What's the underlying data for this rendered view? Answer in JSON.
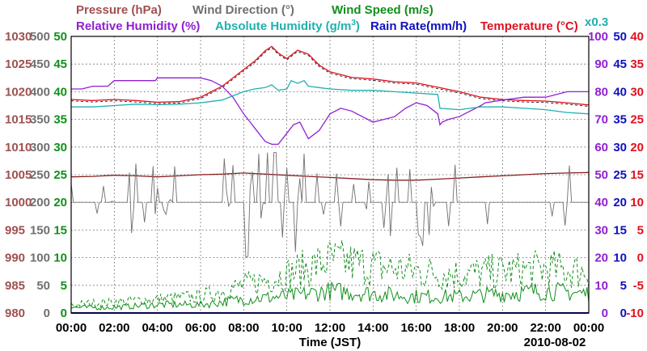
{
  "chart_data": {
    "type": "line",
    "date": "2010-08-02",
    "xlabel": "Time (JST)",
    "x_range": [
      0,
      24
    ],
    "x_tick_labels": [
      "00:00",
      "02:00",
      "04:00",
      "06:00",
      "08:00",
      "10:00",
      "12:00",
      "14:00",
      "16:00",
      "18:00",
      "20:00",
      "22:00",
      "00:00"
    ],
    "grid": true,
    "abs_humidity_scale_note": "x0.3",
    "legend_row1": {
      "pressure": "Pressure (hPa)",
      "wind_direction": "Wind Direction (°)",
      "wind_speed": "Wind Speed (m/s)"
    },
    "legend_row2": {
      "relative_humidity": "Relative Humidity (%)",
      "absolute_humidity_prefix": "Absolute Humidity (g/m",
      "absolute_humidity_sup": "3",
      "absolute_humidity_suffix": ")",
      "rain_rate": "Rain Rate(mm/h)",
      "temperature": "Temperature (°C)"
    },
    "axes": {
      "pressure": {
        "color": "#a05050",
        "min": 980,
        "max": 1030,
        "ticks": [
          "1030",
          "1025",
          "1020",
          "1015",
          "1010",
          "1005",
          "1000",
          "995",
          "990",
          "985",
          "980"
        ]
      },
      "wind_direction": {
        "color": "#707070",
        "min": 0,
        "max": 500,
        "ticks": [
          "500",
          "450",
          "400",
          "350",
          "300",
          "250",
          "200",
          "150",
          "100",
          "50",
          "0"
        ]
      },
      "wind_speed": {
        "color": "#10901a",
        "min": 0,
        "max": 50,
        "ticks": [
          "50",
          "45",
          "40",
          "35",
          "30",
          "25",
          "20",
          "15",
          "10",
          "5",
          "0"
        ]
      },
      "relative_humidity": {
        "color": "#9020d0",
        "min": 0,
        "max": 100,
        "ticks": [
          "100",
          "90",
          "80",
          "70",
          "60",
          "50",
          "40",
          "30",
          "20",
          "10",
          "0"
        ]
      },
      "rain_rate": {
        "color": "#1010c0",
        "min": 0,
        "max": 50,
        "ticks": [
          "50",
          "45",
          "40",
          "35",
          "30",
          "25",
          "20",
          "15",
          "10",
          "5",
          "0"
        ]
      },
      "temperature": {
        "color": "#e01020",
        "min": -10,
        "max": 40,
        "ticks": [
          "40",
          "35",
          "30",
          "25",
          "20",
          "15",
          "10",
          "5",
          "0",
          "-5",
          "-10"
        ]
      }
    },
    "series": [
      {
        "name": "Temperature",
        "axis": "temperature",
        "color": "#e01020",
        "dashed_companion": true,
        "x": [
          0,
          1,
          2,
          3,
          4,
          5,
          6,
          7,
          8,
          8.5,
          9,
          9.3,
          9.6,
          10,
          10.5,
          11,
          11.5,
          12,
          13,
          14,
          15,
          16,
          17,
          18,
          19,
          20,
          21,
          22,
          23,
          24
        ],
        "y": [
          28.6,
          28.4,
          28.6,
          28.4,
          28.1,
          28.2,
          29,
          31,
          34,
          35.5,
          37.4,
          38.2,
          37,
          36,
          37.5,
          36.8,
          34.8,
          33.6,
          32.6,
          32.3,
          31.8,
          31.6,
          30.8,
          30,
          29,
          28.6,
          28.4,
          28.3,
          28,
          27.6
        ]
      },
      {
        "name": "Relative Humidity",
        "axis": "relative_humidity",
        "color": "#9020d0",
        "x": [
          0,
          0.5,
          1,
          1.7,
          2,
          3,
          3.9,
          4,
          5,
          6,
          6.5,
          7,
          7.5,
          8,
          8.3,
          8.6,
          9,
          9.3,
          9.6,
          10,
          10.3,
          10.6,
          11,
          11.5,
          12,
          12.5,
          13,
          13.5,
          14,
          14.5,
          15,
          15.5,
          16,
          16.5,
          17,
          17.1,
          17.2,
          17.5,
          18,
          18.5,
          19,
          19.2,
          20,
          21,
          22,
          23,
          24
        ],
        "y": [
          81,
          81,
          82,
          82,
          84,
          84,
          84,
          85,
          85,
          85,
          84,
          82,
          78,
          72,
          69,
          66,
          62,
          61,
          61,
          65,
          68,
          69,
          63,
          66,
          72,
          74,
          73,
          71,
          69,
          70,
          71,
          74,
          76,
          75,
          72,
          68,
          69,
          70,
          71,
          73,
          75,
          76,
          77,
          78,
          78,
          80,
          80
        ]
      },
      {
        "name": "Absolute Humidity",
        "axis": "relative_humidity",
        "color": "#20b0b0",
        "x": [
          0,
          1,
          2,
          3,
          4,
          5,
          6,
          7,
          7.5,
          8,
          8.5,
          9,
          9.3,
          9.6,
          10,
          10.2,
          10.5,
          10.8,
          11,
          11.5,
          12,
          13,
          14,
          15,
          16,
          17,
          17.1,
          18,
          18.5,
          19,
          20,
          21,
          22,
          23,
          24
        ],
        "y": [
          74.5,
          74.5,
          75,
          75.5,
          75.3,
          75.5,
          76,
          77,
          78.5,
          80,
          81,
          81.5,
          82.5,
          80.5,
          81,
          84,
          83,
          84,
          82,
          81.5,
          81,
          80.5,
          80.5,
          80,
          79.5,
          79,
          74,
          73.5,
          74,
          74.5,
          74.5,
          74,
          73.5,
          72.5,
          72
        ]
      },
      {
        "name": "Pressure",
        "axis": "pressure",
        "color": "#8a2020",
        "x": [
          0,
          1,
          2,
          3,
          4,
          5,
          6,
          7,
          8,
          9,
          10,
          11,
          12,
          13,
          14,
          15,
          16,
          17,
          18,
          19,
          20,
          21,
          22,
          23,
          24
        ],
        "y": [
          1004.6,
          1004.7,
          1004.9,
          1004.8,
          1004.6,
          1004.8,
          1005,
          1005.1,
          1005.3,
          1005.1,
          1004.9,
          1004.7,
          1004.5,
          1004.3,
          1004.1,
          1004.0,
          1004.0,
          1004.2,
          1004.4,
          1004.6,
          1004.8,
          1005.0,
          1005.2,
          1005.3,
          1005.4
        ]
      },
      {
        "name": "Wind Direction",
        "axis": "wind_direction",
        "color": "#707070",
        "style": "spiky_gray",
        "baseline": 200
      },
      {
        "name": "Wind Speed (max)",
        "axis": "wind_speed",
        "color": "#10901a",
        "style": "dashed_noisy",
        "x": [
          0,
          2,
          4,
          6,
          8,
          10,
          12,
          14,
          16,
          18,
          20,
          22,
          24
        ],
        "y": [
          1.5,
          2,
          2.5,
          3,
          5,
          7,
          9.5,
          8.5,
          7.5,
          7,
          7.5,
          8,
          7.5
        ]
      },
      {
        "name": "Wind Speed (avg)",
        "axis": "wind_speed",
        "color": "#10901a",
        "style": "solid_noisy",
        "x": [
          0,
          2,
          4,
          6,
          8,
          10,
          12,
          14,
          16,
          18,
          20,
          22,
          24
        ],
        "y": [
          1,
          1,
          1.5,
          1.5,
          2.5,
          3,
          4,
          3.5,
          3,
          3,
          3.5,
          4,
          3.5
        ]
      },
      {
        "name": "Rain Rate",
        "axis": "rain_rate",
        "color": "#1010c0",
        "x": [
          0,
          24
        ],
        "y": [
          0,
          0
        ]
      }
    ]
  }
}
